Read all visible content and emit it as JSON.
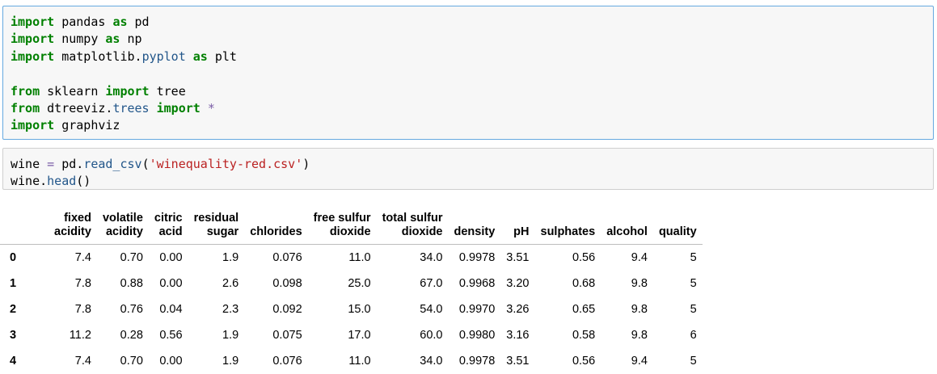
{
  "cells": [
    {
      "lines": [
        [
          [
            "kw",
            "import"
          ],
          [
            "pl",
            " pandas "
          ],
          [
            "kw",
            "as"
          ],
          [
            "pl",
            " pd"
          ]
        ],
        [
          [
            "kw",
            "import"
          ],
          [
            "pl",
            " numpy "
          ],
          [
            "kw",
            "as"
          ],
          [
            "pl",
            " np"
          ]
        ],
        [
          [
            "kw",
            "import"
          ],
          [
            "pl",
            " matplotlib."
          ],
          [
            "attr",
            "pyplot"
          ],
          [
            "pl",
            " "
          ],
          [
            "kw",
            "as"
          ],
          [
            "pl",
            " plt"
          ]
        ],
        [],
        [
          [
            "kw",
            "from"
          ],
          [
            "pl",
            " sklearn "
          ],
          [
            "kw",
            "import"
          ],
          [
            "pl",
            " tree"
          ]
        ],
        [
          [
            "kw",
            "from"
          ],
          [
            "pl",
            " dtreeviz."
          ],
          [
            "attr",
            "trees"
          ],
          [
            "pl",
            " "
          ],
          [
            "kw",
            "import"
          ],
          [
            "pl",
            " "
          ],
          [
            "op",
            "*"
          ]
        ],
        [
          [
            "kw",
            "import"
          ],
          [
            "pl",
            " graphviz"
          ]
        ]
      ]
    },
    {
      "lines": [
        [
          [
            "pl",
            "wine "
          ],
          [
            "op",
            "="
          ],
          [
            "pl",
            " pd."
          ],
          [
            "attr",
            "read_csv"
          ],
          [
            "pl",
            "("
          ],
          [
            "str",
            "'winequality-red.csv'"
          ],
          [
            "pl",
            ")"
          ]
        ],
        [
          [
            "pl",
            "wine."
          ],
          [
            "attr",
            "head"
          ],
          [
            "pl",
            "()"
          ]
        ]
      ]
    }
  ],
  "dataframe": {
    "columns": [
      [
        "fixed",
        "acidity"
      ],
      [
        "volatile",
        "acidity"
      ],
      [
        "citric",
        "acid"
      ],
      [
        "residual",
        "sugar"
      ],
      [
        "chlorides"
      ],
      [
        "free sulfur",
        "dioxide"
      ],
      [
        "total sulfur",
        "dioxide"
      ],
      [
        "density"
      ],
      [
        "pH"
      ],
      [
        "sulphates"
      ],
      [
        "alcohol"
      ],
      [
        "quality"
      ]
    ],
    "rows": [
      {
        "index": "0",
        "values": [
          "7.4",
          "0.70",
          "0.00",
          "1.9",
          "0.076",
          "11.0",
          "34.0",
          "0.9978",
          "3.51",
          "0.56",
          "9.4",
          "5"
        ]
      },
      {
        "index": "1",
        "values": [
          "7.8",
          "0.88",
          "0.00",
          "2.6",
          "0.098",
          "25.0",
          "67.0",
          "0.9968",
          "3.20",
          "0.68",
          "9.8",
          "5"
        ]
      },
      {
        "index": "2",
        "values": [
          "7.8",
          "0.76",
          "0.04",
          "2.3",
          "0.092",
          "15.0",
          "54.0",
          "0.9970",
          "3.26",
          "0.65",
          "9.8",
          "5"
        ]
      },
      {
        "index": "3",
        "values": [
          "11.2",
          "0.28",
          "0.56",
          "1.9",
          "0.075",
          "17.0",
          "60.0",
          "0.9980",
          "3.16",
          "0.58",
          "9.8",
          "6"
        ]
      },
      {
        "index": "4",
        "values": [
          "7.4",
          "0.70",
          "0.00",
          "1.9",
          "0.076",
          "11.0",
          "34.0",
          "0.9978",
          "3.51",
          "0.56",
          "9.4",
          "5"
        ]
      }
    ]
  }
}
